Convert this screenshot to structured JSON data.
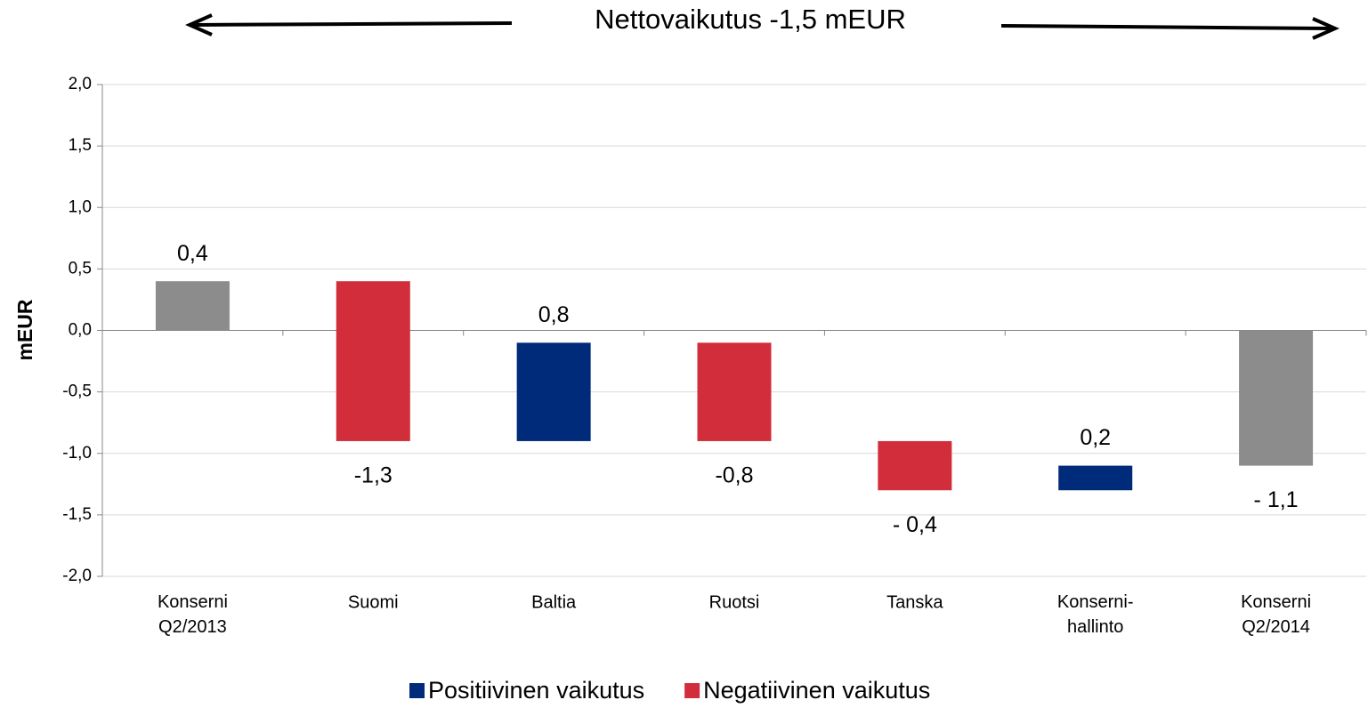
{
  "chart_data": {
    "type": "waterfall",
    "title": "Nettovaikutus -1,5 mEUR",
    "ylabel": "mEUR",
    "categories": [
      "Konserni\nQ2/2013",
      "Suomi",
      "Baltia",
      "Ruotsi",
      "Tanska",
      "Konserni-\nhallinto",
      "Konserni\nQ2/2014"
    ],
    "values": [
      0.4,
      -1.3,
      0.8,
      -0.8,
      -0.4,
      0.2,
      -1.1
    ],
    "value_labels": [
      "0,4",
      "-1,3",
      "0,8",
      "-0,8",
      "- 0,4",
      "0,2",
      "- 1,1"
    ],
    "measure": [
      "absolute",
      "relative",
      "relative",
      "relative",
      "relative",
      "relative",
      "absolute"
    ],
    "colors": [
      "#8c8c8c",
      "#d12d3a",
      "#002a7a",
      "#d12d3a",
      "#d12d3a",
      "#002a7a",
      "#8c8c8c"
    ],
    "legend": [
      {
        "name": "Positiivinen vaikutus",
        "color": "#002a7a"
      },
      {
        "name": "Negatiivinen vaikutus",
        "color": "#d12d3a"
      }
    ],
    "ylim": [
      -2,
      2
    ],
    "yticks": [
      {
        "value": -2,
        "label": "-2,0"
      },
      {
        "value": -1.5,
        "label": "-1,5"
      },
      {
        "value": -1,
        "label": "-1,0"
      },
      {
        "value": -0.5,
        "label": "-0,5"
      },
      {
        "value": 0,
        "label": "0,0"
      },
      {
        "value": 0.5,
        "label": "0,5"
      },
      {
        "value": 1,
        "label": "1,0"
      },
      {
        "value": 1.5,
        "label": "1,5"
      },
      {
        "value": 2,
        "label": "2,0"
      }
    ],
    "grid": true
  }
}
